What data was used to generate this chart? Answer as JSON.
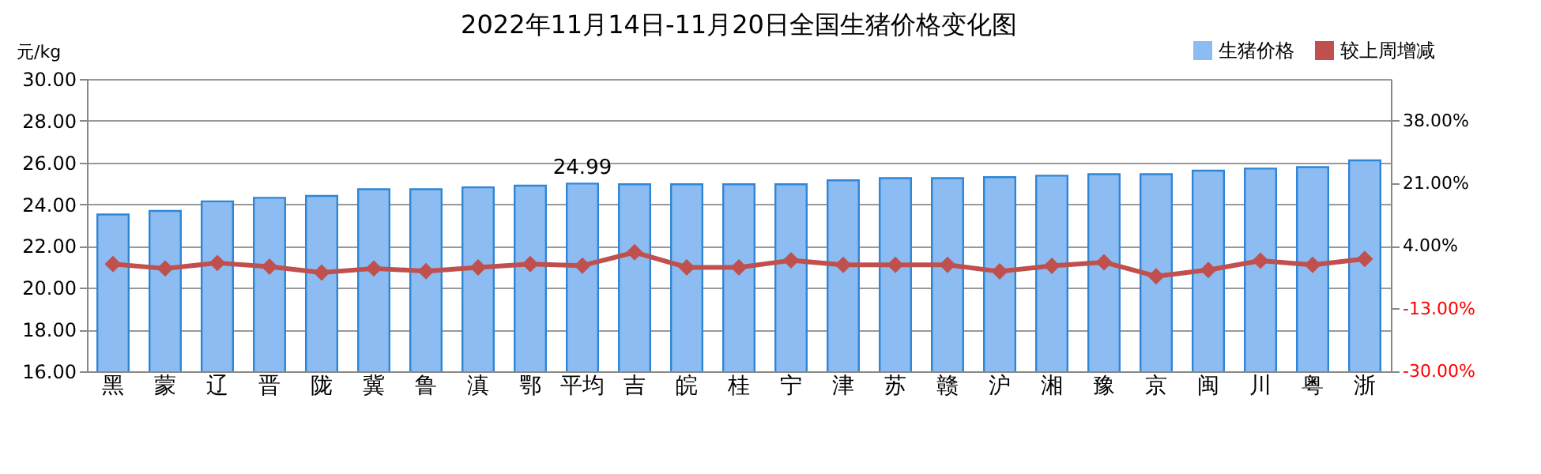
{
  "chart_data": {
    "type": "bar",
    "title": "2022年11月14日-11月20日全国生猪价格变化图",
    "ylabel": "元/kg",
    "categories": [
      "黑",
      "蒙",
      "辽",
      "晋",
      "陇",
      "冀",
      "鲁",
      "滇",
      "鄂",
      "平均",
      "吉",
      "皖",
      "桂",
      "宁",
      "津",
      "苏",
      "赣",
      "沪",
      "湘",
      "豫",
      "京",
      "闽",
      "川",
      "粤",
      "浙"
    ],
    "series": [
      {
        "name": "生猪价格",
        "color": "#8cbcf2",
        "values": [
          23.51,
          23.68,
          24.14,
          24.31,
          24.4,
          24.72,
          24.72,
          24.81,
          24.89,
          24.99,
          24.96,
          24.96,
          24.96,
          24.96,
          25.15,
          25.25,
          25.25,
          25.3,
          25.37,
          25.44,
          25.44,
          25.61,
          25.71,
          25.78,
          26.1
        ],
        "value_labels": [
          null,
          null,
          null,
          null,
          null,
          null,
          null,
          null,
          null,
          "24.99",
          null,
          null,
          null,
          null,
          null,
          null,
          null,
          null,
          null,
          null,
          null,
          null,
          null,
          null,
          null
        ]
      },
      {
        "name": "较上周增减",
        "type": "line",
        "axis": "y2",
        "color": "#c0504d",
        "marker": "diamond",
        "values": [
          -0.9,
          -2.1,
          -0.6,
          -1.6,
          -3.2,
          -2.1,
          -2.8,
          -1.8,
          -0.9,
          -1.3,
          2.3,
          -1.8,
          -1.8,
          0.1,
          -1.1,
          -1.1,
          -1.1,
          -2.9,
          -1.4,
          -0.4,
          -4.2,
          -2.5,
          0.0,
          -1.1,
          0.5
        ]
      }
    ],
    "ylim": [
      16,
      30
    ],
    "yticks": [
      {
        "value": 16,
        "label": "16.00"
      },
      {
        "value": 18,
        "label": "18.00"
      },
      {
        "value": 20,
        "label": "20.00"
      },
      {
        "value": 22,
        "label": "22.00"
      },
      {
        "value": 24,
        "label": "24.00"
      },
      {
        "value": 26,
        "label": "26.00"
      },
      {
        "value": 28,
        "label": "28.00"
      },
      {
        "value": 30,
        "label": "30.00"
      }
    ],
    "y2lim": [
      -30,
      49.33
    ],
    "y2ticks": [
      {
        "value": -30,
        "label": "-30.00%"
      },
      {
        "value": -13,
        "label": "-13.00%"
      },
      {
        "value": 4,
        "label": "4.00%"
      },
      {
        "value": 21,
        "label": "21.00%"
      },
      {
        "value": 38,
        "label": "38.00%"
      }
    ],
    "grid": "y",
    "legend": "top right"
  }
}
